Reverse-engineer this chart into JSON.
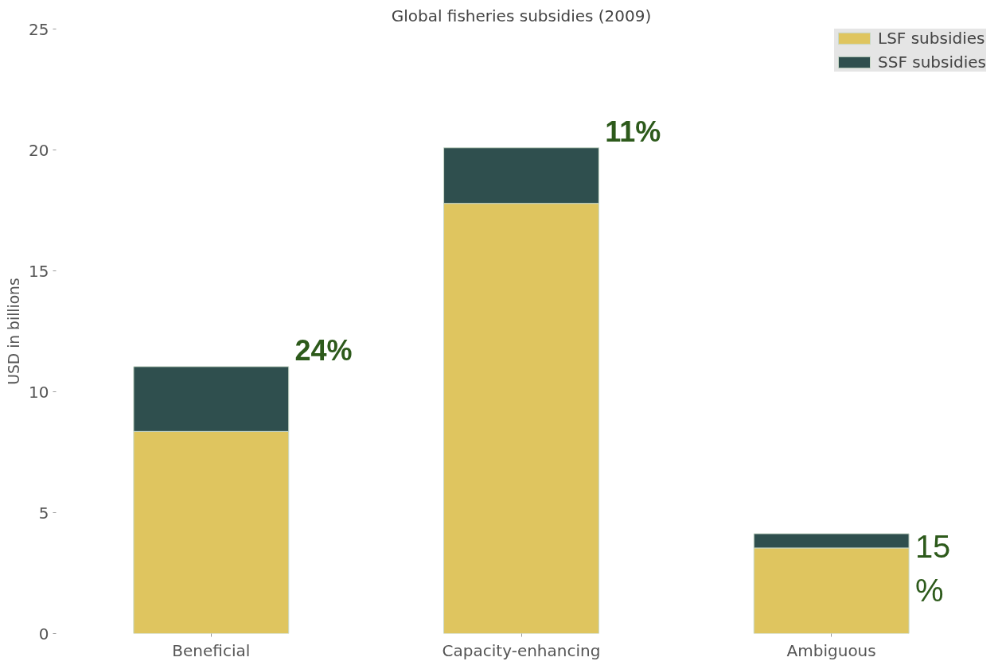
{
  "chart_data": {
    "type": "bar",
    "title": "Global fisheries subsidies (2009)",
    "ylabel": "USD in billions",
    "categories": [
      "Beneficial",
      "Capacity-enhancing",
      "Ambiguous"
    ],
    "stacked": true,
    "series": [
      {
        "name": "LSF subsidies",
        "color": "#dfc55f",
        "values": [
          8.36,
          17.79,
          3.54
        ]
      },
      {
        "name": "SSF subsidies",
        "color": "#2f4f4e",
        "values": [
          2.68,
          2.3,
          0.59
        ]
      }
    ],
    "ylim": [
      0,
      25
    ],
    "yticks": [
      0,
      5,
      10,
      15,
      20,
      25
    ],
    "legend": "top right",
    "grid": false,
    "annotations": [
      {
        "text": "24%",
        "x": "Beneficial",
        "y": 11.04
      },
      {
        "text": "11%",
        "x": "Capacity-enhancing",
        "y": 20.09
      },
      {
        "text": "15\n%",
        "x": "Ambiguous",
        "y": 4.13
      }
    ]
  }
}
